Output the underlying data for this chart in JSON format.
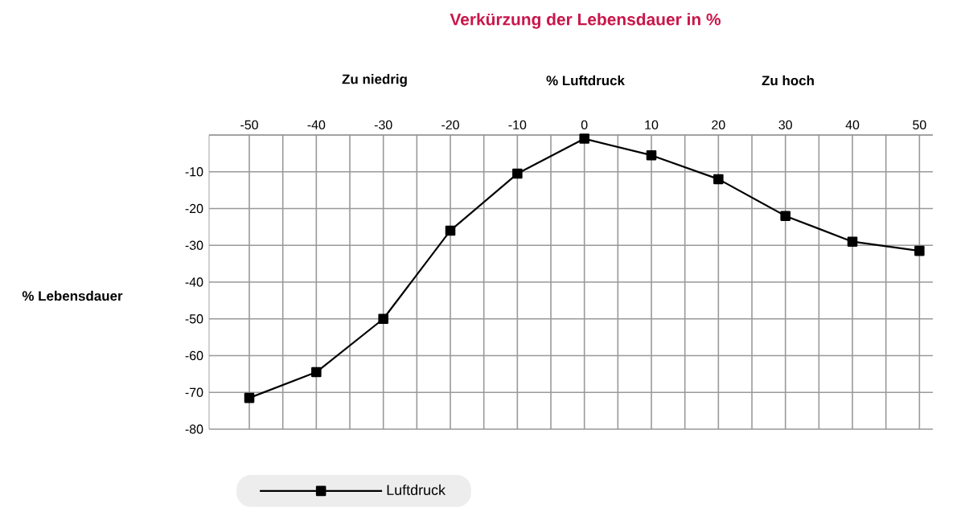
{
  "chart_data": {
    "type": "line",
    "title": "Verkürzung der Lebensdauer in %",
    "xlabel": "% Luftdruck",
    "ylabel": "% Lebensdauer",
    "annotations": [
      "Zu niedrig",
      "Zu hoch"
    ],
    "x": [
      -50,
      -40,
      -30,
      -20,
      -10,
      0,
      10,
      20,
      30,
      40,
      50
    ],
    "series": [
      {
        "name": "Luftdruck",
        "color": "#000000",
        "values": [
          -71.5,
          -64.5,
          -50,
          -26,
          -10.5,
          -1,
          -5.5,
          -12,
          -22,
          -29,
          -31.5
        ]
      }
    ],
    "xlim": [
      -56,
      52
    ],
    "xticks": [
      -50,
      {
        "value": -45,
        "label": null
      },
      -40,
      {
        "value": -35,
        "label": null
      },
      -30,
      {
        "value": -25,
        "label": null
      },
      -20,
      {
        "value": -15,
        "label": null
      },
      -10,
      {
        "value": -5,
        "label": null
      },
      0,
      {
        "value": 5,
        "label": null
      },
      10,
      {
        "value": 15,
        "label": null
      },
      20,
      {
        "value": 25,
        "label": null
      },
      30,
      {
        "value": 35,
        "label": null
      },
      40,
      {
        "value": 45,
        "label": null
      },
      50
    ],
    "ylim": [
      -80,
      0
    ],
    "yticks": [
      {
        "value": 0,
        "label": null
      },
      -10,
      -20,
      -30,
      -40,
      -50,
      -60,
      -70,
      -80
    ],
    "grid": true,
    "legend": "bottom",
    "marker": "square",
    "line_style": "solid"
  }
}
